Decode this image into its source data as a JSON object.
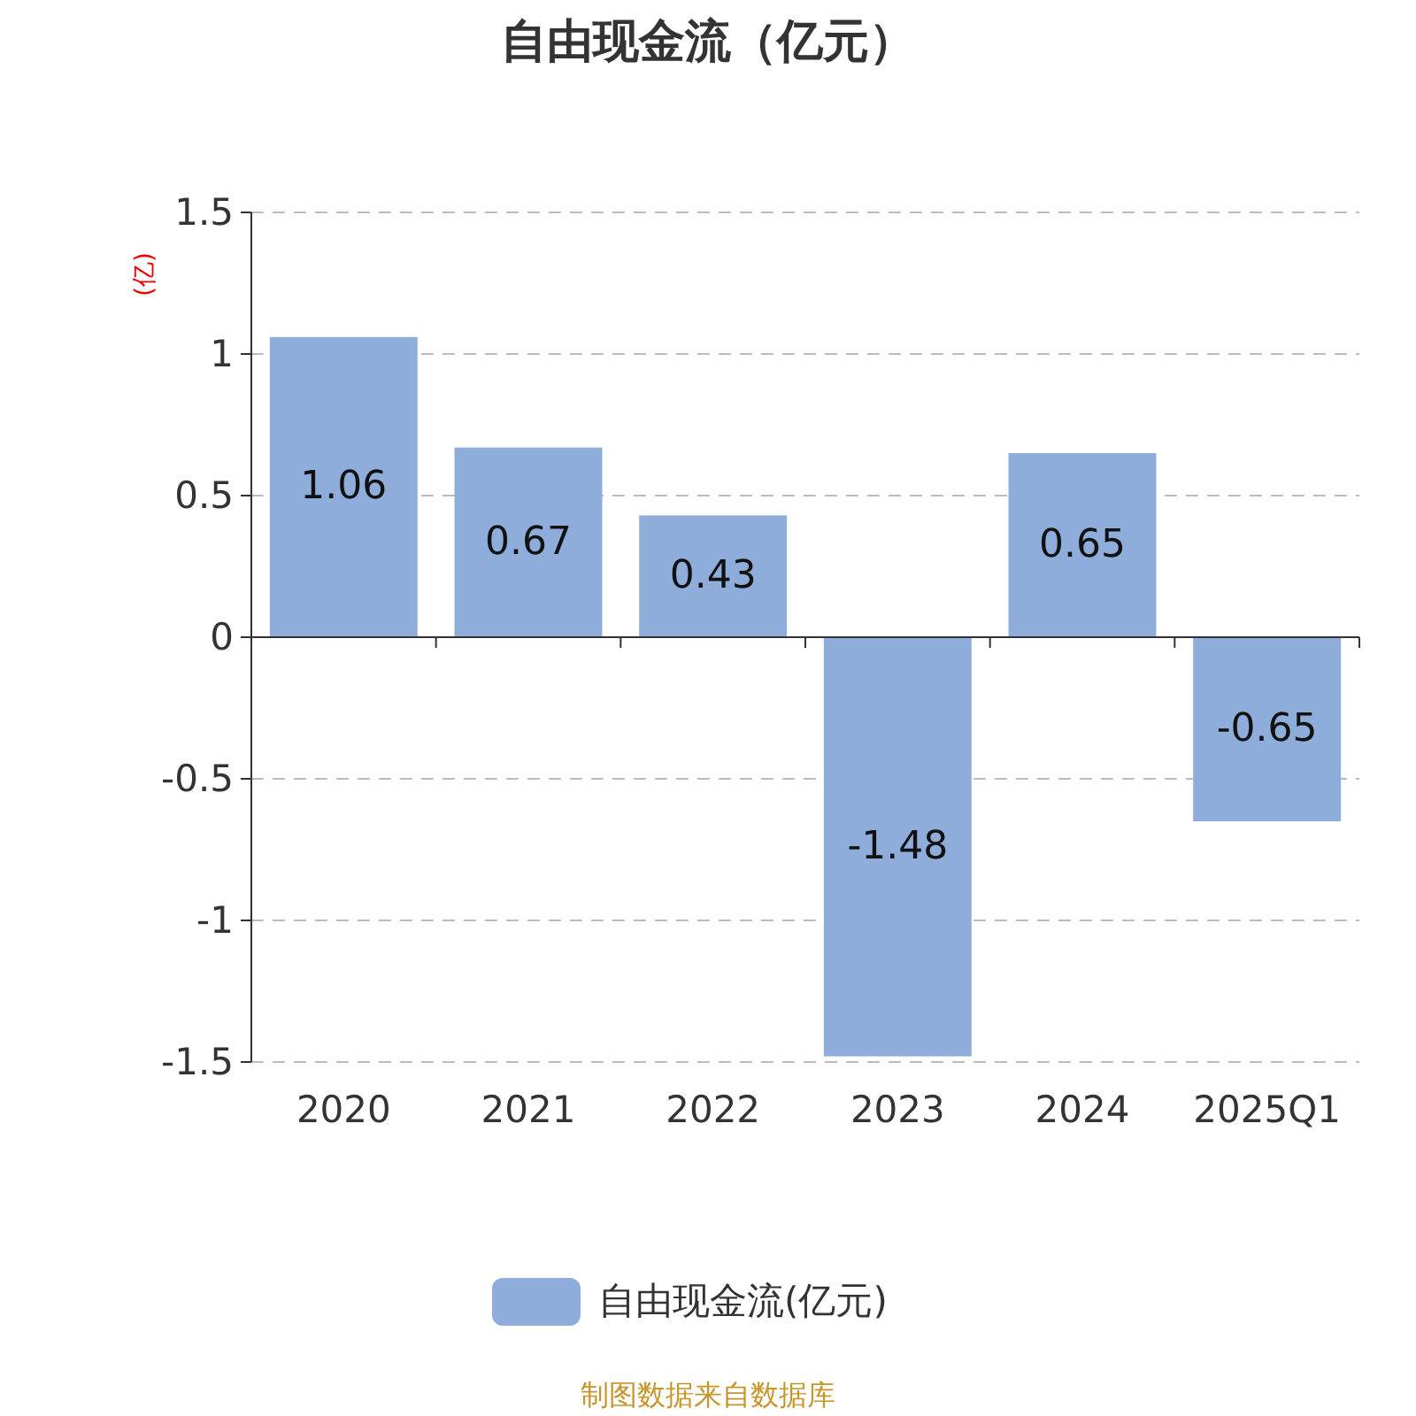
{
  "chart_data": {
    "type": "bar",
    "title": "自由现金流（亿元）",
    "ylabel": "(亿)",
    "categories": [
      "2020",
      "2021",
      "2022",
      "2023",
      "2024",
      "2025Q1"
    ],
    "series": [
      {
        "name": "自由现金流(亿元)",
        "color": "#8eaddb",
        "values": [
          1.06,
          0.67,
          0.43,
          -1.48,
          0.65,
          -0.65
        ]
      }
    ],
    "ylim": [
      -1.5,
      1.5
    ],
    "yticks": [
      -1.5,
      -1,
      -0.5,
      0,
      0.5,
      1,
      1.5
    ],
    "grid": "y",
    "legend": "bottom",
    "data_labels": true,
    "annotations": [
      "制图数据来自数据库"
    ]
  }
}
